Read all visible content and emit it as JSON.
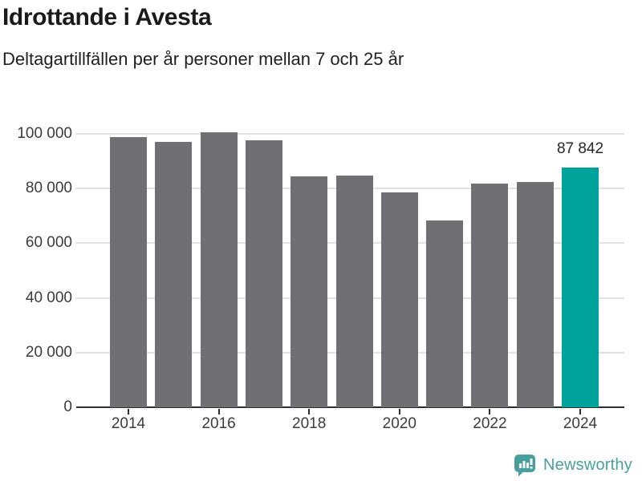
{
  "header": {
    "title": "Idrottande i Avesta",
    "subtitle": "Deltagartillfällen per år personer mellan 7 och 25 år"
  },
  "chart_data": {
    "type": "bar",
    "title": "Idrottande i Avesta",
    "subtitle": "Deltagartillfällen per år personer mellan 7 och 25 år",
    "categories": [
      2014,
      2015,
      2016,
      2017,
      2018,
      2019,
      2020,
      2021,
      2022,
      2023,
      2024
    ],
    "values": [
      98800,
      97200,
      100600,
      97600,
      84500,
      84900,
      78600,
      68300,
      81700,
      82500,
      87842
    ],
    "highlight": {
      "category": 2024,
      "value": 87842,
      "label": "87 842"
    },
    "ylim": [
      0,
      100000
    ],
    "y_ticks": [
      {
        "value": 0,
        "label": "0"
      },
      {
        "value": 20000,
        "label": "20 000"
      },
      {
        "value": 40000,
        "label": "40 000"
      },
      {
        "value": 60000,
        "label": "60 000"
      },
      {
        "value": 80000,
        "label": "80 000"
      },
      {
        "value": 100000,
        "label": "100 000"
      }
    ],
    "x_tick_years": [
      2014,
      2016,
      2018,
      2020,
      2022,
      2024
    ],
    "grid": "horizontal",
    "legend": "none",
    "bar_color": "#706f74",
    "highlight_color": "#00a39b",
    "gridline_color": "#e2e2e2",
    "axis_color": "#2f2f2f"
  },
  "footer": {
    "brand": "Newsworthy",
    "logo_icon": "newsworthy-chart-bubble-icon",
    "brand_color": "#47a09d"
  }
}
